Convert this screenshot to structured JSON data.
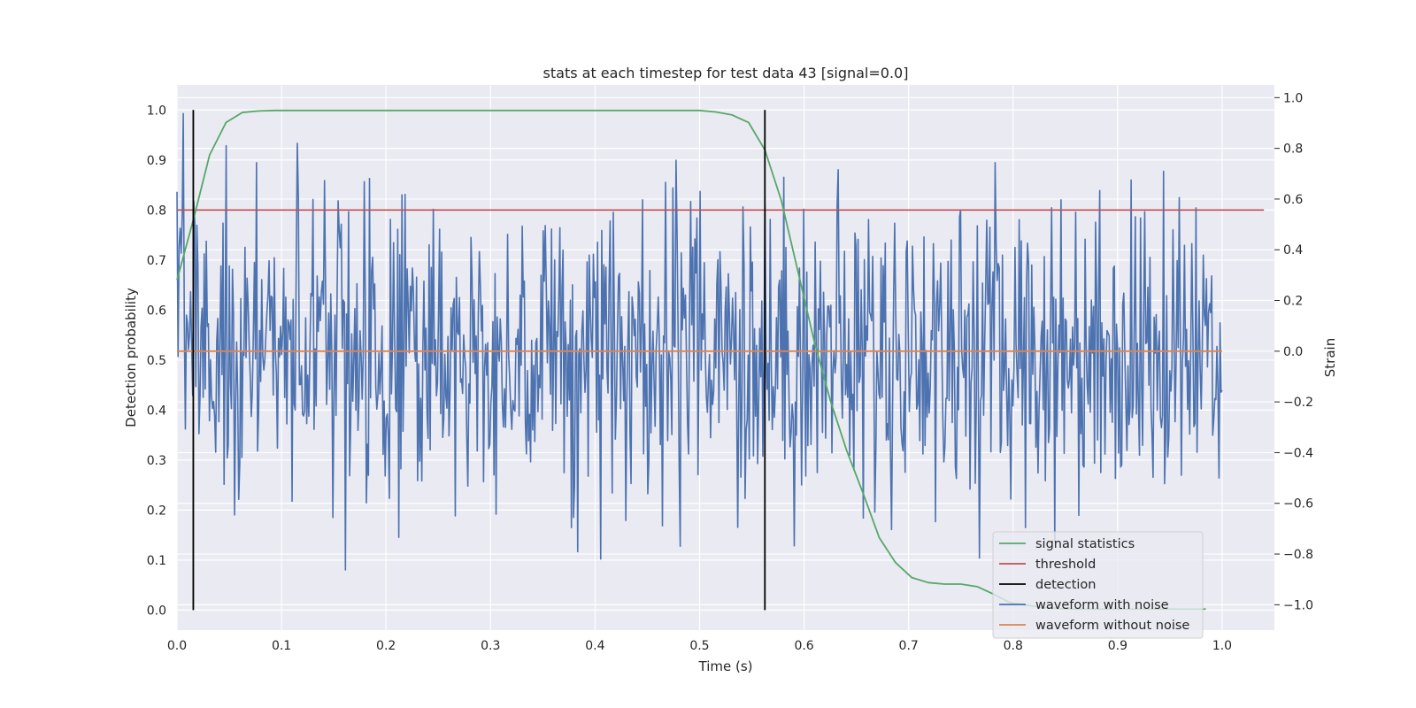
{
  "chart_data": {
    "type": "line",
    "title": "stats at each timestep for test data 43 [signal=0.0]",
    "xlabel": "Time (s)",
    "ylabel": "Detection probability",
    "ylabel_right": "Strain",
    "xlim": [
      0.0,
      1.05
    ],
    "ylim": [
      -0.04,
      1.05
    ],
    "ylim_right": [
      -1.1,
      1.05
    ],
    "xticks": [
      "0.0",
      "0.1",
      "0.2",
      "0.3",
      "0.4",
      "0.5",
      "0.6",
      "0.7",
      "0.8",
      "0.9",
      "1.0"
    ],
    "yticks": [
      "0.0",
      "0.1",
      "0.2",
      "0.3",
      "0.4",
      "0.5",
      "0.6",
      "0.7",
      "0.8",
      "0.9",
      "1.0"
    ],
    "yticks_right": [
      "−1.0",
      "−0.8",
      "−0.6",
      "−0.4",
      "−0.2",
      "0.0",
      "0.2",
      "0.4",
      "0.6",
      "0.8",
      "1.0"
    ],
    "grid": true,
    "legend_position": "lower-right",
    "series": [
      {
        "name": "signal statistics",
        "color": "#55a868",
        "axis": "left",
        "x": [
          0.0,
          0.0156,
          0.0312,
          0.0469,
          0.0625,
          0.0781,
          0.0938,
          0.5,
          0.5156,
          0.5312,
          0.5469,
          0.5625,
          0.5781,
          0.5938,
          0.6094,
          0.625,
          0.6406,
          0.6562,
          0.6719,
          0.6875,
          0.7031,
          0.7188,
          0.7344,
          0.75,
          0.7656,
          0.7812,
          0.7969,
          0.8125,
          0.8281,
          0.8438,
          0.8594,
          0.875,
          0.8906,
          0.9062,
          0.9219,
          0.9375,
          0.9531,
          0.9688,
          0.9844
        ],
        "values": [
          0.66,
          0.78,
          0.91,
          0.975,
          0.995,
          0.998,
          0.999,
          0.999,
          0.996,
          0.99,
          0.975,
          0.92,
          0.82,
          0.68,
          0.54,
          0.42,
          0.32,
          0.235,
          0.145,
          0.095,
          0.065,
          0.055,
          0.052,
          0.052,
          0.047,
          0.032,
          0.015,
          0.01,
          0.005,
          0.003,
          0.002,
          0.002,
          0.002,
          0.002,
          0.002,
          0.002,
          0.002,
          0.002,
          0.002
        ]
      },
      {
        "name": "threshold",
        "color": "#c44e52",
        "axis": "left",
        "x": [
          0.0,
          1.04
        ],
        "values": [
          0.8,
          0.8
        ]
      },
      {
        "name": "detection",
        "color": "#000000",
        "axis": "left",
        "segments": [
          0.0156,
          0.5625
        ],
        "range": [
          0.0,
          1.0
        ]
      },
      {
        "name": "waveform with noise",
        "color": "#4c72b0",
        "axis": "right",
        "x_range": [
          0.0,
          1.0
        ],
        "n_points": 1000,
        "amplitude": 0.3,
        "min": -0.95,
        "max": 0.99
      },
      {
        "name": "waveform without noise",
        "color": "#dd8452",
        "axis": "right",
        "x": [
          0.0,
          1.0
        ],
        "values": [
          0.0,
          0.0
        ]
      }
    ]
  }
}
